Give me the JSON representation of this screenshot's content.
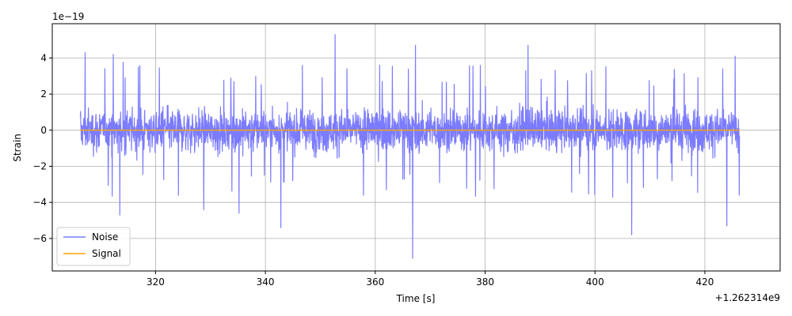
{
  "chart_data": {
    "type": "line",
    "title": "",
    "xlabel": "Time [s]",
    "ylabel": "Strain",
    "x_offset_label": "+1.262314e9",
    "y_scale_label": "1e−19",
    "xlim": [
      301.2,
      433.7
    ],
    "ylim": [
      -7.8,
      5.9
    ],
    "x_ticks": [
      320,
      340,
      360,
      380,
      400,
      420
    ],
    "x_tick_labels": [
      "320",
      "340",
      "360",
      "380",
      "400",
      "420"
    ],
    "y_ticks": [
      -6,
      -4,
      -2,
      0,
      2,
      4
    ],
    "y_tick_labels": [
      "−6",
      "−4",
      "−2",
      "0",
      "2",
      "4"
    ],
    "grid": true,
    "legend_position": "lower-left",
    "series": [
      {
        "name": "Noise",
        "color": "#7b7bff",
        "x_range": [
          306.3,
          426.3
        ],
        "typical_band": [
          -2.2,
          2.2
        ],
        "peaks": [
          {
            "x": 307.2,
            "y": 4.3
          },
          {
            "x": 312.3,
            "y": 4.2
          },
          {
            "x": 313.5,
            "y": -4.7
          },
          {
            "x": 352.7,
            "y": 5.3
          },
          {
            "x": 360.8,
            "y": 3.6
          },
          {
            "x": 366.8,
            "y": -7.1
          },
          {
            "x": 367.3,
            "y": 4.7
          },
          {
            "x": 342.8,
            "y": -5.4
          },
          {
            "x": 335.2,
            "y": -4.6
          },
          {
            "x": 328.8,
            "y": -4.4
          },
          {
            "x": 387.8,
            "y": 4.7
          },
          {
            "x": 406.7,
            "y": -5.8
          },
          {
            "x": 424.0,
            "y": -5.3
          },
          {
            "x": 425.5,
            "y": 4.1
          }
        ]
      },
      {
        "name": "Signal",
        "color": "#ffa500",
        "x": [
          306.3,
          426.3
        ],
        "y": [
          0,
          0
        ]
      }
    ]
  }
}
